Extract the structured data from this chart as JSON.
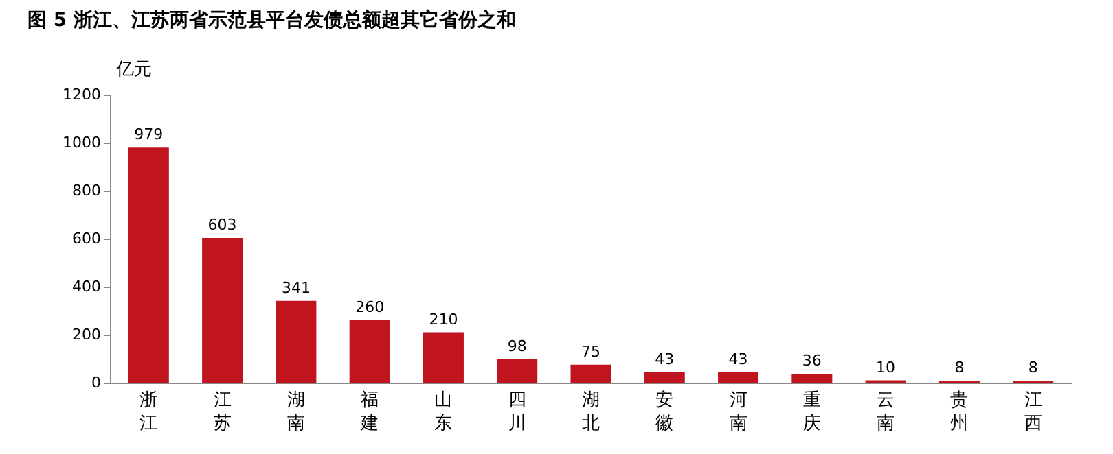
{
  "chart_data": {
    "type": "bar",
    "title": "图 5   浙江、江苏两省示范县平台发债总额超其它省份之和",
    "ylabel": "亿元",
    "categories": [
      "浙江",
      "江苏",
      "湖南",
      "福建",
      "山东",
      "四川",
      "湖北",
      "安徽",
      "河南",
      "重庆",
      "云南",
      "贵州",
      "江西"
    ],
    "values": [
      979,
      603,
      341,
      260,
      210,
      98,
      75,
      43,
      43,
      36,
      10,
      8,
      8
    ],
    "color": "#c0141f",
    "ylim": [
      0,
      1200
    ],
    "yticks": [
      0,
      200,
      400,
      600,
      800,
      1000,
      1200
    ],
    "grid": false,
    "data_labels": true
  }
}
